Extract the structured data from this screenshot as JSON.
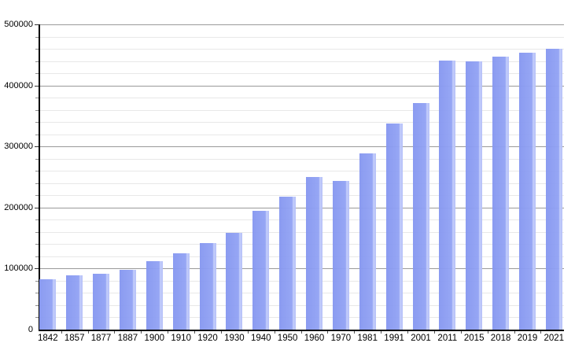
{
  "chart_data": {
    "type": "bar",
    "title": "",
    "xlabel": "",
    "ylabel": "",
    "categories": [
      "1842",
      "1857",
      "1877",
      "1887",
      "1900",
      "1910",
      "1920",
      "1930",
      "1940",
      "1950",
      "1960",
      "1970",
      "1981",
      "1991",
      "2001",
      "2011",
      "2015",
      "2018",
      "2019",
      "2021"
    ],
    "values": [
      83000,
      89314,
      91805,
      98538,
      111693,
      125057,
      141846,
      158724,
      195147,
      218375,
      249738,
      243759,
      288631,
      338250,
      370745,
      441354,
      439712,
      447182,
      453258,
      460349
    ],
    "ylim": [
      0,
      500000
    ],
    "y_major_step": 100000,
    "y_minor_step": 20000,
    "y_tick_labels": [
      "0",
      "100000",
      "200000",
      "300000",
      "400000",
      "500000"
    ],
    "grid": "on",
    "legend": "none",
    "colors": {
      "bar_fill": "#90a1f2",
      "bar_highlight_edge": "#c1cbfb",
      "major_grid": "#9a9a9a",
      "minor_grid": "#e8e8e8",
      "axis": "#000000",
      "background": "#ffffff",
      "text": "#000000"
    }
  }
}
